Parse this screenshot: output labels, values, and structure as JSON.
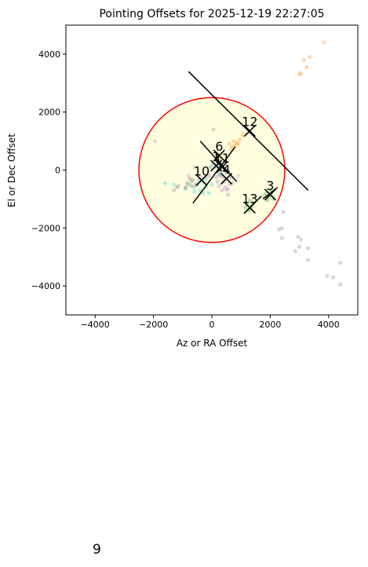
{
  "chart_data": {
    "type": "scatter",
    "title": "Pointing Offsets for 2025-12-19 22:27:05",
    "xlabel": "Az or RA Offset",
    "ylabel": "El or Dec Offset",
    "xlim": [
      -5000,
      5000
    ],
    "ylim": [
      -5000,
      5000
    ],
    "xticks": [
      -4000,
      -2000,
      0,
      2000,
      4000
    ],
    "yticks": [
      -4000,
      -2000,
      0,
      2000,
      4000
    ],
    "xtick_labels": [
      "−4000",
      "−2000",
      "0",
      "2000",
      "4000"
    ],
    "ytick_labels": [
      "−4000",
      "−2000",
      "0",
      "2000",
      "4000"
    ],
    "grid": false,
    "circle": {
      "center": [
        0,
        0
      ],
      "radius": 2500,
      "fill": "#ffffe0",
      "edge": "#ff0000"
    },
    "diagonal_line": [
      [
        -800,
        3400
      ],
      [
        3300,
        -700
      ]
    ],
    "series": [
      {
        "color": "#ff7f0e",
        "points": [
          [
            1050,
            1200
          ],
          [
            950,
            1050
          ],
          [
            850,
            950
          ],
          [
            800,
            850
          ],
          [
            700,
            800
          ],
          [
            650,
            700
          ],
          [
            750,
            1000
          ],
          [
            600,
            900
          ],
          [
            900,
            900
          ],
          [
            3050,
            3350
          ],
          [
            3000,
            3300
          ],
          [
            3250,
            3550
          ],
          [
            3350,
            3900
          ],
          [
            3150,
            3800
          ],
          [
            3850,
            4400
          ]
        ]
      },
      {
        "color": "#2ca02c",
        "points": [
          [
            1200,
            -1200
          ],
          [
            1300,
            -1350
          ],
          [
            1350,
            -1250
          ],
          [
            1250,
            -1400
          ],
          [
            1150,
            -1300
          ],
          [
            1400,
            -1150
          ],
          [
            1300,
            -1050
          ],
          [
            1850,
            -800
          ],
          [
            1950,
            -950
          ],
          [
            2050,
            -850
          ],
          [
            2000,
            -700
          ],
          [
            2100,
            -1000
          ],
          [
            1900,
            -1050
          ],
          [
            1800,
            -900
          ]
        ]
      },
      {
        "color": "#9467bd",
        "points": [
          [
            300,
            -200
          ],
          [
            400,
            -400
          ],
          [
            500,
            -300
          ],
          [
            200,
            -400
          ],
          [
            600,
            -500
          ],
          [
            450,
            -600
          ],
          [
            350,
            -700
          ],
          [
            550,
            -650
          ],
          [
            250,
            -550
          ],
          [
            650,
            -250
          ],
          [
            500,
            -100
          ],
          [
            150,
            -250
          ],
          [
            700,
            -450
          ],
          [
            400,
            -250
          ],
          [
            -100,
            -200
          ],
          [
            550,
            -850
          ]
        ]
      },
      {
        "color": "#17becf",
        "points": [
          [
            -300,
            -400
          ],
          [
            -500,
            -500
          ],
          [
            -400,
            -700
          ],
          [
            -200,
            -600
          ],
          [
            -700,
            -400
          ],
          [
            -600,
            -600
          ],
          [
            -800,
            -500
          ],
          [
            -100,
            -800
          ],
          [
            -300,
            -800
          ],
          [
            -1600,
            -450
          ],
          [
            -1300,
            -500
          ],
          [
            -900,
            -650
          ],
          [
            -600,
            -750
          ],
          [
            -200,
            -300
          ],
          [
            -450,
            -350
          ],
          [
            0,
            -500
          ]
        ]
      },
      {
        "color": "#e377c2",
        "points": [
          [
            -350,
            -250
          ],
          [
            -150,
            -100
          ],
          [
            100,
            -100
          ],
          [
            -800,
            -200
          ],
          [
            -600,
            100
          ],
          [
            500,
            -700
          ],
          [
            -1950,
            1000
          ],
          [
            900,
            -200
          ]
        ]
      },
      {
        "color": "#8c564b",
        "points": [
          [
            -650,
            -350
          ],
          [
            -700,
            -550
          ],
          [
            -850,
            -450
          ],
          [
            -750,
            -300
          ],
          [
            -550,
            -500
          ],
          [
            -900,
            -600
          ]
        ]
      },
      {
        "color": "#1f77b4",
        "points": [
          [
            150,
            100
          ],
          [
            250,
            150
          ],
          [
            300,
            -50
          ],
          [
            200,
            300
          ],
          [
            350,
            200
          ],
          [
            50,
            200
          ],
          [
            250,
            -150
          ],
          [
            -50,
            100
          ]
        ]
      },
      {
        "color": "#bcbd22",
        "points": [
          [
            200,
            500
          ],
          [
            300,
            400
          ],
          [
            150,
            350
          ],
          [
            350,
            550
          ]
        ]
      },
      {
        "color": "#7f7f7f",
        "points": [
          [
            50,
            1400
          ],
          [
            -1200,
            -600
          ],
          [
            -1150,
            -550
          ],
          [
            -1300,
            -700
          ],
          [
            2450,
            -1450
          ],
          [
            2400,
            -2000
          ],
          [
            2300,
            -2050
          ],
          [
            2400,
            -2350
          ],
          [
            2950,
            -2300
          ],
          [
            3050,
            -2400
          ],
          [
            2850,
            -2800
          ],
          [
            3000,
            -2650
          ],
          [
            3300,
            -2700
          ],
          [
            3300,
            -3100
          ],
          [
            3950,
            -3650
          ],
          [
            4150,
            -3700
          ],
          [
            4400,
            -3950
          ],
          [
            4400,
            -3200
          ]
        ]
      }
    ],
    "markers": [
      {
        "label": "12",
        "x": 1300,
        "y": 1350
      },
      {
        "label": "6",
        "x": 250,
        "y": 500
      },
      {
        "label": "1",
        "x": 150,
        "y": 150
      },
      {
        "label": "11",
        "x": 350,
        "y": 100
      },
      {
        "label": "10",
        "x": -350,
        "y": -350
      },
      {
        "label": "4",
        "x": 500,
        "y": -300
      },
      {
        "label": "3",
        "x": 2000,
        "y": -850
      },
      {
        "label": "13",
        "x": 1300,
        "y": -1300
      }
    ],
    "line_segments": [
      [
        [
          -400,
          1000
        ],
        [
          850,
          -400
        ]
      ],
      [
        [
          -650,
          -1150
        ],
        [
          800,
          800
        ]
      ],
      [
        [
          1100,
          -1500
        ],
        [
          1700,
          -900
        ]
      ],
      [
        [
          1750,
          -1000
        ],
        [
          2250,
          -600
        ]
      ]
    ]
  },
  "page_number": "9"
}
